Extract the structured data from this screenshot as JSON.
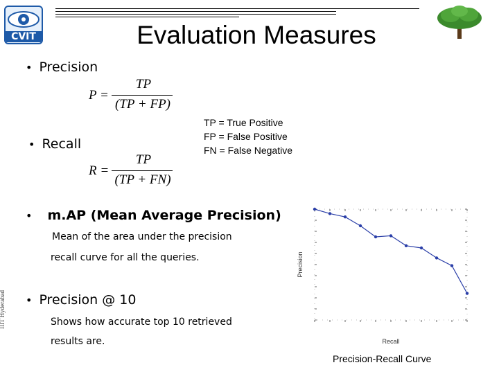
{
  "header": {
    "logo_text": "CVIT",
    "title": "Evaluation Measures"
  },
  "sections": {
    "precision": {
      "label": "Precision",
      "formula_lhs": "P =",
      "numerator": "TP",
      "denominator": "(TP + FP)"
    },
    "recall": {
      "label": "Recall",
      "formula_lhs": "R =",
      "numerator": "TP",
      "denominator": "(TP + FN)"
    },
    "definitions": [
      "TP = True Positive",
      "FP = False Positive",
      "FN = False Negative"
    ],
    "map": {
      "label": "m.AP (Mean Average Precision)",
      "desc_line1": "Mean of the area under the precision",
      "desc_line2": "recall curve for all the queries."
    },
    "p10": {
      "label": "Precision @ 10",
      "desc_line1": "Shows how accurate top 10 retrieved",
      "desc_line2": "results are."
    }
  },
  "side_text": "IIIT Hyderabad",
  "chart_caption": "Precision-Recall Curve",
  "chart_data": {
    "type": "line",
    "xlabel": "Recall",
    "ylabel": "Precision",
    "xlim": [
      0,
      1
    ],
    "ylim": [
      0,
      1
    ],
    "x": [
      0,
      0.1,
      0.2,
      0.3,
      0.4,
      0.5,
      0.6,
      0.7,
      0.8,
      0.9,
      1.0
    ],
    "series": [
      {
        "values": [
          1.0,
          0.96,
          0.93,
          0.85,
          0.75,
          0.76,
          0.67,
          0.65,
          0.56,
          0.49,
          0.24
        ]
      }
    ],
    "colors": {
      "line": "#2b3fa8",
      "marker": "#2b3fa8"
    }
  }
}
